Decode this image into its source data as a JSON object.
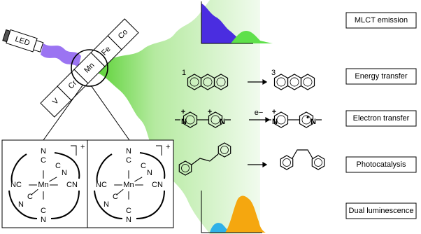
{
  "led": "LED",
  "elements": [
    "V",
    "Cr",
    "Mn",
    "Fe",
    "Co"
  ],
  "applications": [
    "MLCT emission",
    "Energy transfer",
    "Electron transfer",
    "Photocatalysis",
    "Dual luminescence"
  ],
  "energy_transfer": {
    "reactant_spin": "1",
    "product_spin": "3"
  },
  "electron_transfer": {
    "reactant_atoms": [
      "+",
      "N",
      "+",
      "N"
    ],
    "electron": "e−",
    "product_atoms": [
      "+",
      "N",
      "N",
      "•"
    ]
  },
  "complexes": [
    {
      "metal": "Mn",
      "charge": "+",
      "atoms": [
        "N",
        "C",
        "N",
        "C",
        "NC",
        "CN",
        "N",
        "C",
        "C",
        "N"
      ]
    },
    {
      "metal": "Mn",
      "charge": "+",
      "atoms": [
        "N",
        "C",
        "N",
        "C",
        "NC",
        "CN",
        "N",
        "C",
        "C",
        "N"
      ]
    }
  ]
}
